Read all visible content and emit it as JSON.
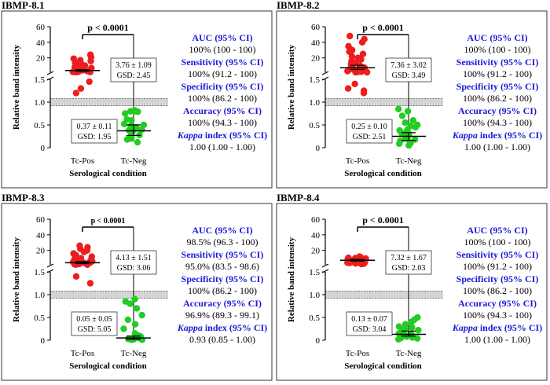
{
  "figure": {
    "ylabel": "Relative band intensity",
    "xlabel": "Serological condition",
    "categories": [
      "Tc-Pos",
      "Tc-Neg"
    ],
    "colors": {
      "pos": "#ee1c1c",
      "neg": "#22cc22",
      "stat_blue": "#1a1ad6",
      "frame": "#333333",
      "band": "#d4d4d4"
    }
  },
  "chart_data": [
    {
      "type": "scatter",
      "title": "IBMP-8.1",
      "xlabel": "Serological condition",
      "ylabel": "Relative band intensity",
      "categories": [
        "Tc-Pos",
        "Tc-Neg"
      ],
      "y_segments": [
        {
          "range": [
            0,
            1.5
          ],
          "ticks": [
            0,
            0.5,
            1.0,
            1.5
          ]
        },
        {
          "range": [
            1.5,
            60
          ],
          "ticks": [
            1.5,
            20,
            40,
            60
          ]
        }
      ],
      "cutoff_band": [
        0.92,
        1.08
      ],
      "p_value": "p < 0.0001",
      "series": [
        {
          "name": "Tc-Pos",
          "values": [
            24,
            21,
            19,
            17,
            16,
            14,
            12,
            11,
            10,
            9,
            8,
            7,
            6,
            5,
            4,
            3.76,
            3.5,
            3,
            2.5,
            2.2,
            2,
            1.8,
            1.6,
            1.45,
            1.3,
            1.2
          ]
        },
        {
          "name": "Tc-Neg",
          "values": [
            0.82,
            0.8,
            0.79,
            0.8,
            0.75,
            0.62,
            0.6,
            0.52,
            0.5,
            0.48,
            0.45,
            0.42,
            0.4,
            0.38,
            0.37,
            0.35,
            0.3,
            0.28,
            0.25,
            0.2,
            0.19,
            0.18,
            0.12
          ]
        }
      ],
      "summary_pos": {
        "center": 3.76,
        "low": 2.9,
        "high": 4.8
      },
      "summary_neg": {
        "center": 0.37,
        "low": 0.27,
        "high": 0.5
      },
      "annotation_pos": {
        "mean": "3.76 ± 1.09",
        "gsd": "GSD: 2.45"
      },
      "annotation_neg": {
        "mean": "0.37 ± 0.11",
        "gsd": "GSD: 1.95"
      },
      "stats": [
        {
          "label": "AUC (95% CI)",
          "value": "100% (100 - 100)"
        },
        {
          "label": "Sensitivity (95% CI)",
          "value": "100% (91.2 - 100)"
        },
        {
          "label": "Specificity (95% CI)",
          "value": "100% (86.2 - 100)"
        },
        {
          "label": "Accuracy (95% CI)",
          "value": "100% (94.3 - 100)"
        },
        {
          "label": "Kappa index (95% CI)",
          "value": "1.00 (1.00 - 1.00)"
        }
      ]
    },
    {
      "type": "scatter",
      "title": "IBMP-8.2",
      "xlabel": "Serological condition",
      "ylabel": "Relative band intensity",
      "categories": [
        "Tc-Pos",
        "Tc-Neg"
      ],
      "y_segments": [
        {
          "range": [
            0,
            1.5
          ],
          "ticks": [
            0,
            0.5,
            1.0,
            1.5
          ]
        },
        {
          "range": [
            1.5,
            60
          ],
          "ticks": [
            1.5,
            20,
            40,
            60
          ]
        }
      ],
      "cutoff_band": [
        0.92,
        1.08
      ],
      "p_value": "p < 0.0001",
      "series": [
        {
          "name": "Tc-Pos",
          "values": [
            48,
            44,
            40,
            35,
            30,
            28,
            25,
            22,
            20,
            18,
            16,
            14,
            12,
            10,
            9,
            8,
            7.36,
            7,
            6,
            5,
            4.5,
            4,
            3.5,
            3,
            2.5,
            2.2,
            2,
            1.8,
            1.6,
            1.5,
            1.4,
            1.3,
            1.25,
            1.2
          ]
        },
        {
          "name": "Tc-Neg",
          "values": [
            0.85,
            0.8,
            0.7,
            0.6,
            0.55,
            0.5,
            0.48,
            0.45,
            0.4,
            0.38,
            0.35,
            0.32,
            0.3,
            0.28,
            0.25,
            0.22,
            0.2,
            0.18,
            0.15,
            0.12,
            0.1,
            0.09,
            0.05
          ]
        }
      ],
      "summary_pos": {
        "center": 7.36,
        "low": 5.0,
        "high": 10.5
      },
      "summary_neg": {
        "center": 0.25,
        "low": 0.16,
        "high": 0.33
      },
      "annotation_pos": {
        "mean": "7.36 ± 3.02",
        "gsd": "GSD: 3.49"
      },
      "annotation_neg": {
        "mean": "0.25 ± 0.10",
        "gsd": "GSD: 2.51"
      },
      "stats": [
        {
          "label": "AUC (95% CI)",
          "value": "100% (100 - 100)"
        },
        {
          "label": "Sensitivity (95% CI)",
          "value": "100% (91.2 - 100)"
        },
        {
          "label": "Specificity (95% CI)",
          "value": "100% (86.2 - 100)"
        },
        {
          "label": "Accuracy (95% CI)",
          "value": "100% (94.3 - 100)"
        },
        {
          "label": "Kappa index (95% CI)",
          "value": "1.00 (1.00 - 1.00)"
        }
      ]
    },
    {
      "type": "scatter",
      "title": "IBMP-8.3",
      "xlabel": "Serological condition",
      "ylabel": "Relative band intensity",
      "categories": [
        "Tc-Pos",
        "Tc-Neg"
      ],
      "y_segments": [
        {
          "range": [
            0,
            1.5
          ],
          "ticks": [
            0,
            0.5,
            1.0,
            1.5
          ]
        },
        {
          "range": [
            1.5,
            60
          ],
          "ticks": [
            1.5,
            20,
            40,
            60
          ]
        }
      ],
      "cutoff_band": [
        0.92,
        1.08
      ],
      "p_value": "p < 0.0001",
      "series": [
        {
          "name": "Tc-Pos",
          "values": [
            26,
            24,
            22,
            20,
            18,
            16,
            14,
            12,
            10,
            9,
            8,
            7,
            6,
            5,
            4.5,
            4.13,
            4,
            3.5,
            3,
            2.5,
            2,
            1.8,
            1.6,
            1.4,
            1.25,
            0.35,
            0.2
          ]
        },
        {
          "name": "Tc-Neg",
          "values": [
            0.9,
            0.85,
            0.8,
            0.7,
            0.55,
            0.45,
            0.35,
            0.25,
            0.15,
            0.1,
            0.08,
            0.06,
            0.05,
            0.04,
            0.03,
            0.02,
            0.02,
            0.01,
            0.01
          ]
        }
      ],
      "summary_pos": {
        "center": 4.13,
        "low": 3.0,
        "high": 5.6
      },
      "summary_neg": {
        "center": 0.05,
        "low": 0.02,
        "high": 0.09
      },
      "annotation_pos": {
        "mean": "4.13 ± 1.51",
        "gsd": "GSD: 3.06"
      },
      "annotation_neg": {
        "mean": "0.05 ± 0.05",
        "gsd": "GSD: 5.05"
      },
      "stats": [
        {
          "label": "AUC (95% CI)",
          "value": "98.5% (96.3 - 100)"
        },
        {
          "label": "Sensitivity (95% CI)",
          "value": "95.0% (83.5 - 98.6)"
        },
        {
          "label": "Specificity (95% CI)",
          "value": "100% (86.2 - 100)"
        },
        {
          "label": "Accuracy (95% CI)",
          "value": "96.9% (89.3 - 99.1)"
        },
        {
          "label": "Kappa index (95% CI)",
          "value": "0.93 (0.85 - 1.00)"
        }
      ]
    },
    {
      "type": "scatter",
      "title": "IBMP-8.4",
      "xlabel": "Serological condition",
      "ylabel": "Relative band intensity",
      "categories": [
        "Tc-Pos",
        "Tc-Neg"
      ],
      "y_segments": [
        {
          "range": [
            0,
            1.5
          ],
          "ticks": [
            0,
            0.5,
            1.0,
            1.5
          ]
        },
        {
          "range": [
            1.5,
            60
          ],
          "ticks": [
            1.5,
            20,
            40,
            60
          ]
        }
      ],
      "cutoff_band": [
        0.92,
        1.08
      ],
      "p_value": "p < 0.0001",
      "series": [
        {
          "name": "Tc-Pos",
          "values": [
            12,
            11,
            10.5,
            10,
            9.5,
            9,
            8.5,
            8,
            7.8,
            7.5,
            7.32,
            7,
            6.8,
            6.5,
            6.2,
            6,
            5.8,
            5.5,
            5.2,
            5,
            4.8,
            4.5,
            4.2,
            4,
            3.8,
            3.5,
            3.2,
            3,
            2.8,
            2.5
          ]
        },
        {
          "name": "Tc-Neg",
          "values": [
            0.5,
            0.45,
            0.4,
            0.35,
            0.3,
            0.28,
            0.25,
            0.22,
            0.2,
            0.18,
            0.15,
            0.13,
            0.12,
            0.1,
            0.08,
            0.06,
            0.05,
            0.04,
            0.03,
            0.02
          ]
        }
      ],
      "summary_pos": {
        "center": 7.32,
        "low": 6.3,
        "high": 8.4
      },
      "summary_neg": {
        "center": 0.13,
        "low": 0.09,
        "high": 0.2
      },
      "annotation_pos": {
        "mean": "7.32 ± 1.67",
        "gsd": "GSD: 2.03"
      },
      "annotation_neg": {
        "mean": "0.13 ± 0.07",
        "gsd": "GSD: 3.04"
      },
      "stats": [
        {
          "label": "AUC (95% CI)",
          "value": "100% (100 - 100)"
        },
        {
          "label": "Sensitivity (95% CI)",
          "value": "100% (91.2 - 100)"
        },
        {
          "label": "Specificity (95% CI)",
          "value": "100% (86.2 - 100)"
        },
        {
          "label": "Accuracy (95% CI)",
          "value": "100% (94.3 - 100)"
        },
        {
          "label": "Kappa index (95% CI)",
          "value": "1.00 (1.00 - 1.00)"
        }
      ]
    }
  ]
}
